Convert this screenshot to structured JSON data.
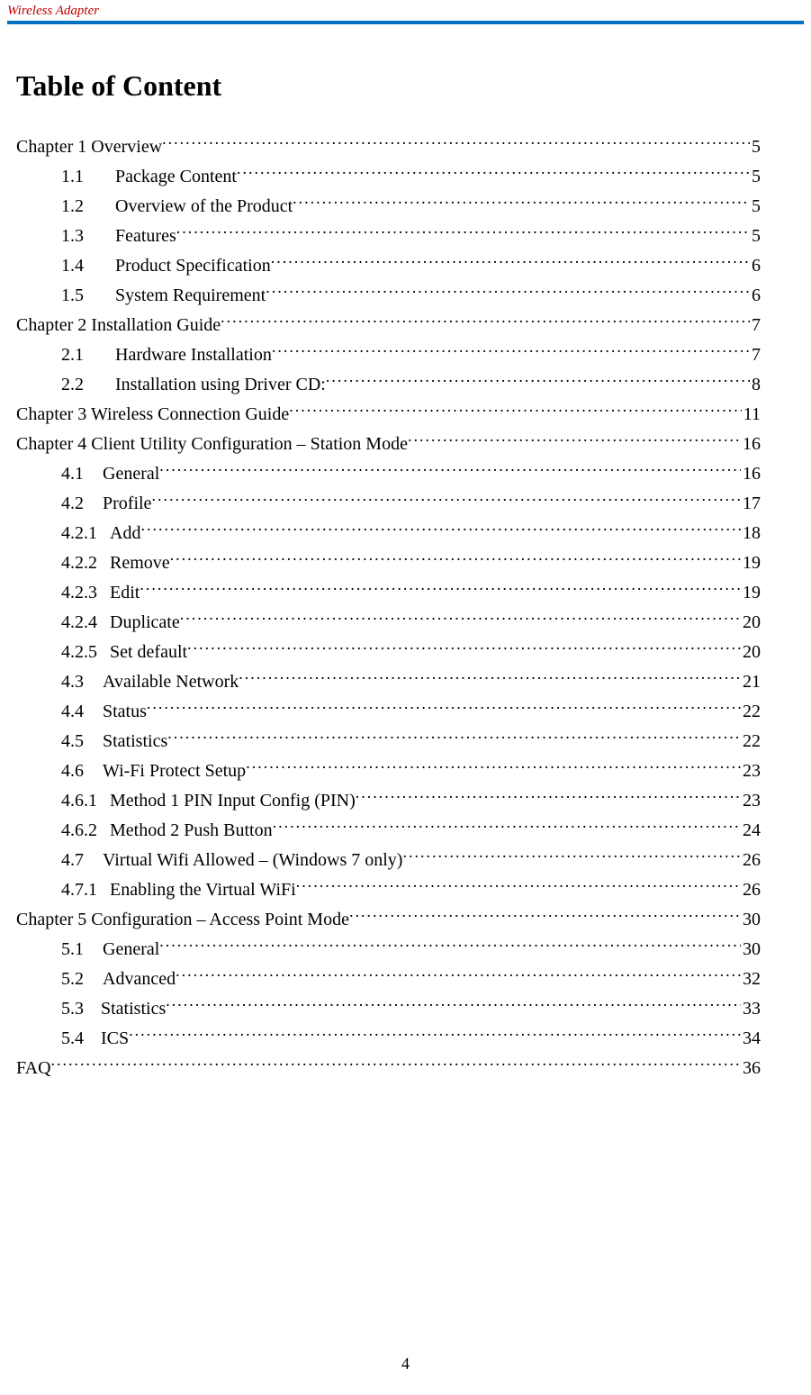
{
  "header": {
    "label": "Wireless  Adapter",
    "rule_color": "#0070c0",
    "label_color": "#c00000"
  },
  "title": "Table of Content",
  "footer_page": "4",
  "toc": [
    {
      "level": "l1",
      "num": "",
      "text": "Chapter 1 Overview ",
      "page": "5"
    },
    {
      "level": "l2",
      "num": "1.1",
      "text": "Package Content",
      "page": "5"
    },
    {
      "level": "l2",
      "num": "1.2",
      "text": "Overview of the Product ",
      "page": "5"
    },
    {
      "level": "l2",
      "num": "1.3",
      "text": "Features ",
      "page": "5"
    },
    {
      "level": "l2",
      "num": "1.4",
      "text": "Product Specification ",
      "page": "6"
    },
    {
      "level": "l2",
      "num": "1.5",
      "text": "System Requirement ",
      "page": "6"
    },
    {
      "level": "l1",
      "num": "",
      "text": "Chapter 2 Installation Guide ",
      "page": "7"
    },
    {
      "level": "l2",
      "num": "2.1",
      "text": "Hardware Installation",
      "page": "7"
    },
    {
      "level": "l2",
      "num": "2.2",
      "text": "Installation using Driver CD:",
      "page": "8"
    },
    {
      "level": "l1",
      "num": "",
      "text": "Chapter 3 Wireless Connection Guide",
      "page": "11"
    },
    {
      "level": "l1",
      "num": "",
      "text": "Chapter 4 Client Utility Configuration – Station Mode",
      "page": "16"
    },
    {
      "level": "l2b",
      "num": "4.1",
      "text": "General",
      "page": "16"
    },
    {
      "level": "l2b",
      "num": "4.2",
      "text": "Profile",
      "page": "17"
    },
    {
      "level": "l3",
      "num": "4.2.1",
      "text": "Add",
      "page": "18"
    },
    {
      "level": "l3",
      "num": "4.2.2",
      "text": "Remove",
      "page": "19"
    },
    {
      "level": "l3",
      "num": "4.2.3",
      "text": "Edit",
      "page": "19"
    },
    {
      "level": "l3",
      "num": "4.2.4",
      "text": "Duplicate",
      "page": "20"
    },
    {
      "level": "l3",
      "num": "4.2.5",
      "text": "Set default",
      "page": "20"
    },
    {
      "level": "l2b",
      "num": "4.3",
      "text": "Available Network",
      "page": "21"
    },
    {
      "level": "l2b",
      "num": "4.4",
      "text": "Status",
      "page": "22"
    },
    {
      "level": "l2b",
      "num": "4.5",
      "text": "Statistics",
      "page": "22"
    },
    {
      "level": "l2b",
      "num": "4.6",
      "text": "Wi-Fi Protect Setup",
      "page": "23"
    },
    {
      "level": "l3",
      "num": "4.6.1",
      "text": "Method 1 PIN Input Config (PIN)",
      "page": "23"
    },
    {
      "level": "l3",
      "num": "4.6.2",
      "text": "Method 2 Push Button",
      "page": "24"
    },
    {
      "level": "l2b",
      "num": "4.7",
      "text": "Virtual Wifi Allowed – (Windows 7 only)",
      "page": "26"
    },
    {
      "level": "l3",
      "num": "4.7.1",
      "text": "Enabling the Virtual WiFi",
      "page": "26"
    },
    {
      "level": "l1",
      "num": "",
      "text": "Chapter 5  Configuration – Access Point Mode",
      "page": "30"
    },
    {
      "level": "l2b",
      "num": "5.1",
      "text": "General",
      "page": "30"
    },
    {
      "level": "l2b",
      "num": "5.2",
      "text": "Advanced",
      "page": "32"
    },
    {
      "level": "l2c",
      "num": "5.3",
      "text": "Statistics",
      "page": "33"
    },
    {
      "level": "l2c",
      "num": " 5.4",
      "text": "ICS",
      "page": "34"
    },
    {
      "level": "l1",
      "num": "",
      "text": "FAQ",
      "page": "36"
    }
  ]
}
